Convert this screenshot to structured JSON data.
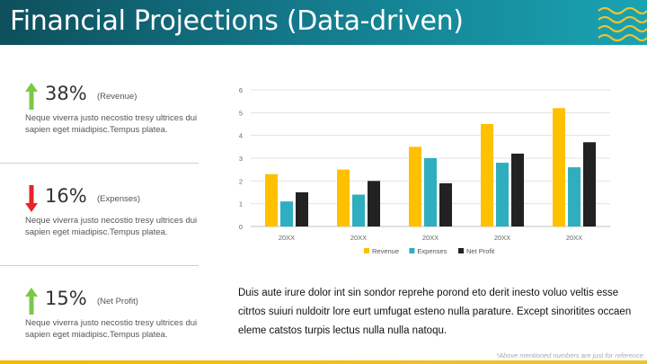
{
  "header": {
    "title": "Financial Projections (Data-driven)"
  },
  "stats": [
    {
      "percent": "38%",
      "label": "(Revenue)",
      "direction": "up",
      "color": "#7ac943",
      "description": "Neque viverra justo necostio tresy ultrices dui sapien eget miadipisc.Tempus platea."
    },
    {
      "percent": "16%",
      "label": "(Expenses)",
      "direction": "down",
      "color": "#e8232a",
      "description": "Neque viverra justo necostio tresy ultrices dui sapien eget miadipisc.Tempus platea."
    },
    {
      "percent": "15%",
      "label": "(Net Profit)",
      "direction": "up",
      "color": "#7ac943",
      "description": "Neque viverra justo necostio tresy ultrices dui sapien eget miadipisc.Tempus platea."
    }
  ],
  "paragraph": "Duis aute irure dolor int sin sondor reprehe porond eto derit inesto voluo veltis esse citrtos suiuri nuldoitr lore eurt umfugat esteno nulla parature. Except sinoritites occaen eleme catstos turpis lectus nulla nulla natoqu.",
  "footnote": "*Above mentioned numbers are just for reference.",
  "chart_data": {
    "type": "bar",
    "categories": [
      "20XX",
      "20XX",
      "20XX",
      "20XX",
      "20XX"
    ],
    "series": [
      {
        "name": "Revenue",
        "color": "#ffc000",
        "values": [
          2.3,
          2.5,
          3.5,
          4.5,
          5.2
        ]
      },
      {
        "name": "Expenses",
        "color": "#2eaebf",
        "values": [
          1.1,
          1.4,
          3.0,
          2.8,
          2.6
        ]
      },
      {
        "name": "Net Profit",
        "color": "#222222",
        "values": [
          1.5,
          2.0,
          1.9,
          3.2,
          3.7
        ]
      }
    ],
    "ylim": [
      0,
      6
    ],
    "yticks": [
      0,
      1,
      2,
      3,
      4,
      5,
      6
    ],
    "grid": true,
    "legend": "bottom"
  }
}
